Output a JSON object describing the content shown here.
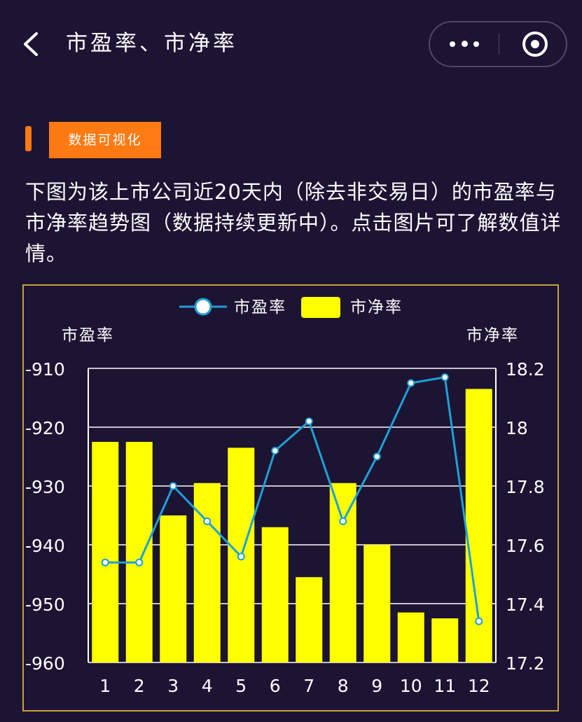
{
  "nav": {
    "title": "市盈率、市净率"
  },
  "section": {
    "badge": "数据可视化"
  },
  "description": "下图为该上市公司近20天内（除去非交易日）的市盈率与市净率趋势图（数据持续更新中）。点击图片可了解数值详情。",
  "colors": {
    "background": "#1c1433",
    "accent": "#ff7a12",
    "bar": "#ffff00",
    "line": "#1fa0d8",
    "frame": "#c8a040"
  },
  "chart_data": {
    "type": "bar",
    "categories": [
      "1",
      "2",
      "3",
      "4",
      "5",
      "6",
      "7",
      "8",
      "9",
      "10",
      "11",
      "12"
    ],
    "series": [
      {
        "name": "市盈率",
        "type": "line",
        "axis": "left",
        "values": [
          -943,
          -943,
          -930,
          -936,
          -942,
          -924,
          -919,
          -936,
          -925,
          -912.5,
          -911.5,
          -953
        ]
      },
      {
        "name": "市净率",
        "type": "bar",
        "axis": "right",
        "values": [
          17.95,
          17.95,
          17.7,
          17.81,
          17.93,
          17.66,
          17.49,
          17.81,
          17.6,
          17.37,
          17.35,
          18.13
        ]
      }
    ],
    "y_left": {
      "label": "市盈率",
      "range": [
        -960,
        -910
      ],
      "ticks": [
        "-910",
        "-920",
        "-930",
        "-940",
        "-950",
        "-960"
      ]
    },
    "y_right": {
      "label": "市净率",
      "range": [
        17.2,
        18.2
      ],
      "ticks": [
        "18.2",
        "18",
        "17.8",
        "17.6",
        "17.4",
        "17.2"
      ]
    },
    "legend_position": "top-center",
    "grid": true
  }
}
